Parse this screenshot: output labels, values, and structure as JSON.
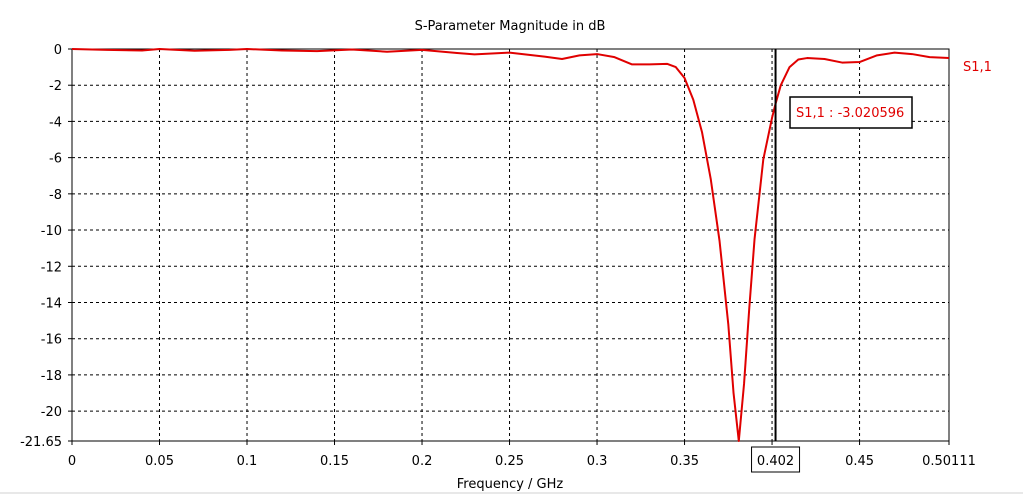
{
  "chart_data": {
    "type": "line",
    "title": "S-Parameter Magnitude in dB",
    "xlabel": "Frequency / GHz",
    "ylabel": "",
    "xlim": [
      0,
      0.50111
    ],
    "ylim": [
      -21.65,
      0
    ],
    "x_ticks": [
      "0",
      "0.05",
      "0.1",
      "0.15",
      "0.2",
      "0.25",
      "0.3",
      "0.35",
      "",
      "0.45",
      "0.50111"
    ],
    "x_tick_values": [
      0,
      0.05,
      0.1,
      0.15,
      0.2,
      0.25,
      0.3,
      0.35,
      0.4,
      0.45,
      0.50111
    ],
    "y_ticks": [
      "0",
      "-2",
      "-4",
      "-6",
      "-8",
      "-10",
      "-12",
      "-14",
      "-16",
      "-18",
      "-20",
      "-21.65"
    ],
    "y_tick_values": [
      0,
      -2,
      -4,
      -6,
      -8,
      -10,
      -12,
      -14,
      -16,
      -18,
      -20,
      -21.65
    ],
    "grid": true,
    "series": [
      {
        "name": "S1,1",
        "color": "#e00000",
        "x": [
          0,
          0.02,
          0.04,
          0.05,
          0.07,
          0.09,
          0.1,
          0.12,
          0.14,
          0.16,
          0.18,
          0.2,
          0.22,
          0.23,
          0.25,
          0.27,
          0.28,
          0.29,
          0.3,
          0.31,
          0.32,
          0.33,
          0.34,
          0.345,
          0.35,
          0.355,
          0.36,
          0.365,
          0.37,
          0.375,
          0.378,
          0.381,
          0.384,
          0.387,
          0.39,
          0.395,
          0.4,
          0.402,
          0.405,
          0.41,
          0.415,
          0.42,
          0.43,
          0.44,
          0.45,
          0.46,
          0.47,
          0.48,
          0.49,
          0.50111
        ],
        "values": [
          0,
          -0.05,
          -0.08,
          0,
          -0.1,
          -0.05,
          0,
          -0.08,
          -0.12,
          -0.03,
          -0.15,
          -0.05,
          -0.22,
          -0.3,
          -0.2,
          -0.42,
          -0.55,
          -0.35,
          -0.28,
          -0.45,
          -0.85,
          -0.85,
          -0.82,
          -1.0,
          -1.6,
          -2.8,
          -4.6,
          -7.2,
          -10.6,
          -15.2,
          -19.0,
          -21.65,
          -18.5,
          -14.3,
          -10.5,
          -6.1,
          -3.8,
          -3.020596,
          -2.0,
          -1.0,
          -0.58,
          -0.5,
          -0.55,
          -0.75,
          -0.72,
          -0.35,
          -0.2,
          -0.28,
          -0.45,
          -0.5
        ]
      }
    ],
    "marker": {
      "x": 0.402,
      "x_label": "0.402",
      "readout": "S1,1 : -3.020596"
    }
  }
}
